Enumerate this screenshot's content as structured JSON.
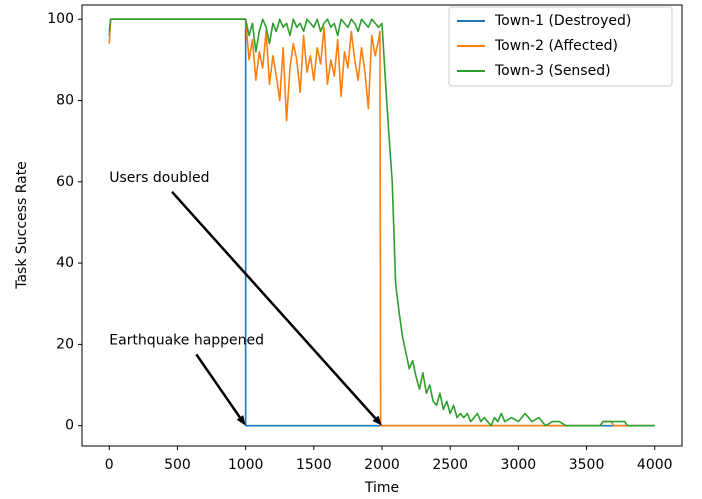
{
  "chart_data": {
    "type": "line",
    "xlabel": "Time",
    "ylabel": "Task Success Rate",
    "xlim": [
      -200,
      4200
    ],
    "ylim": [
      -5,
      103.5
    ],
    "xticks": [
      0,
      500,
      1000,
      1500,
      2000,
      2500,
      3000,
      3500,
      4000
    ],
    "yticks": [
      0,
      20,
      40,
      60,
      80,
      100
    ],
    "legend": "upper right",
    "series": [
      {
        "name": "Town-1 (Destroyed)",
        "color": "#1f77b4",
        "x": [
          0,
          10,
          1000,
          1000,
          4000
        ],
        "values": [
          96,
          100,
          100,
          0,
          0
        ]
      },
      {
        "name": "Town-2 (Affected)",
        "color": "#ff7f0e",
        "x": [
          0,
          10,
          1000,
          1025,
          1050,
          1075,
          1100,
          1125,
          1150,
          1175,
          1200,
          1225,
          1250,
          1275,
          1300,
          1325,
          1350,
          1375,
          1400,
          1425,
          1450,
          1475,
          1500,
          1525,
          1550,
          1575,
          1600,
          1625,
          1650,
          1675,
          1700,
          1725,
          1750,
          1775,
          1800,
          1825,
          1850,
          1875,
          1900,
          1925,
          1950,
          1975,
          1985,
          1990,
          3600,
          3620,
          3680,
          3700,
          4000
        ],
        "values": [
          94,
          100,
          100,
          90,
          95,
          85,
          92,
          88,
          97,
          84,
          91,
          86,
          80,
          93,
          75,
          88,
          94,
          90,
          82,
          96,
          87,
          91,
          85,
          93,
          89,
          98,
          84,
          90,
          86,
          95,
          81,
          92,
          88,
          97,
          90,
          85,
          93,
          87,
          78,
          96,
          91,
          95,
          97,
          0,
          0,
          1,
          1,
          0,
          0
        ]
      },
      {
        "name": "Town-3 (Sensed)",
        "color": "#2ca02c",
        "x": [
          0,
          10,
          1000,
          1025,
          1050,
          1075,
          1100,
          1125,
          1150,
          1175,
          1200,
          1225,
          1250,
          1275,
          1300,
          1325,
          1350,
          1375,
          1400,
          1425,
          1450,
          1475,
          1500,
          1525,
          1550,
          1575,
          1600,
          1625,
          1650,
          1675,
          1700,
          1725,
          1750,
          1775,
          1800,
          1825,
          1850,
          1875,
          1900,
          1925,
          1950,
          1975,
          2000,
          2025,
          2050,
          2075,
          2100,
          2125,
          2150,
          2175,
          2200,
          2225,
          2250,
          2275,
          2300,
          2325,
          2350,
          2375,
          2400,
          2425,
          2450,
          2475,
          2500,
          2525,
          2550,
          2575,
          2600,
          2625,
          2650,
          2675,
          2700,
          2725,
          2750,
          2775,
          2800,
          2825,
          2850,
          2875,
          2900,
          2950,
          3000,
          3050,
          3100,
          3150,
          3200,
          3250,
          3300,
          3350,
          3400,
          3600,
          3620,
          3700,
          3780,
          3800,
          4000
        ],
        "values": [
          97,
          100,
          100,
          96,
          99,
          92,
          97,
          100,
          98,
          94,
          99,
          97,
          100,
          98,
          99,
          96,
          100,
          98,
          99,
          97,
          100,
          99,
          98,
          100,
          97,
          99,
          100,
          98,
          99,
          96,
          100,
          99,
          98,
          100,
          99,
          97,
          100,
          99,
          98,
          100,
          99,
          98,
          99,
          85,
          72,
          60,
          35,
          28,
          22,
          18,
          14,
          16,
          12,
          9,
          13,
          8,
          10,
          6,
          5,
          8,
          4,
          6,
          3,
          5,
          2,
          3,
          2,
          3,
          1,
          2,
          3,
          1,
          2,
          1,
          0,
          2,
          1,
          3,
          1,
          2,
          1,
          3,
          1,
          2,
          0,
          1,
          1,
          0,
          0,
          0,
          1,
          1,
          1,
          0,
          0
        ]
      }
    ],
    "annotations": [
      {
        "text": "Users doubled",
        "xy": [
          2000,
          0
        ],
        "xytext": [
          0,
          60
        ]
      },
      {
        "text": "Earthquake happened",
        "xy": [
          1000,
          0
        ],
        "xytext": [
          0,
          20
        ]
      }
    ]
  }
}
